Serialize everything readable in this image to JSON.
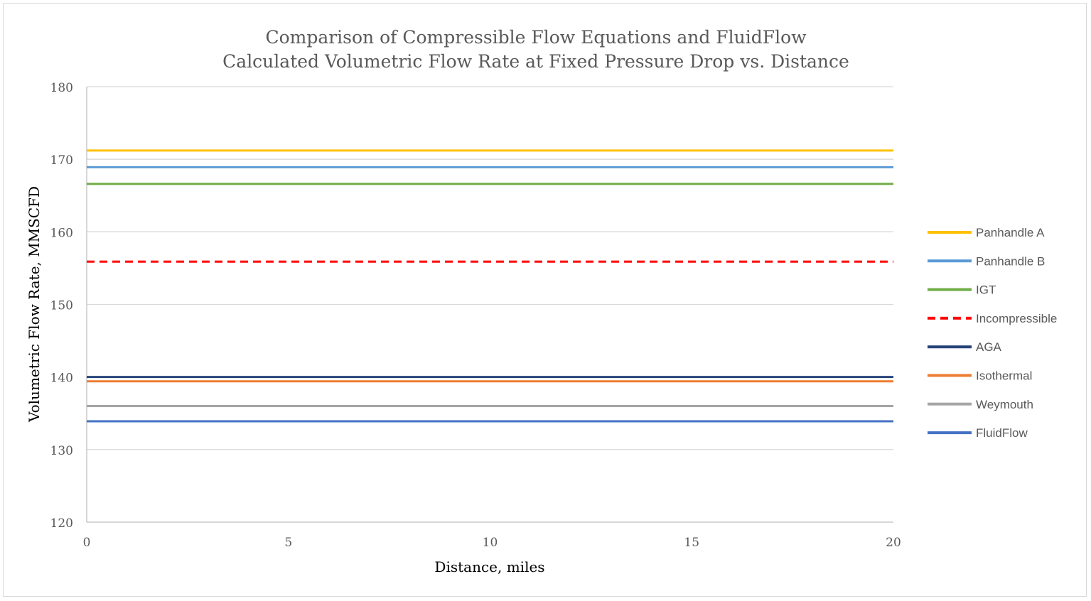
{
  "chart_data": {
    "type": "line",
    "title": "Comparison of Compressible Flow Equations and FluidFlow",
    "subtitle": "Calculated Volumetric Flow Rate at Fixed Pressure Drop vs. Distance",
    "xlabel": "Distance, miles",
    "ylabel": "Volumetric Flow Rate, MMSCFD",
    "xlim": [
      0,
      20
    ],
    "ylim": [
      120,
      180
    ],
    "xticks": [
      0,
      5,
      10,
      15,
      20
    ],
    "yticks": [
      120,
      130,
      140,
      150,
      160,
      170,
      180
    ],
    "grid": "horizontal",
    "legend_position": "right",
    "x": [
      0,
      20
    ],
    "series": [
      {
        "name": "Panhandle A",
        "values": [
          171.2,
          171.2
        ],
        "color": "#ffc000",
        "dash": "solid"
      },
      {
        "name": "Panhandle B",
        "values": [
          168.9,
          168.9
        ],
        "color": "#5b9bd5",
        "dash": "solid"
      },
      {
        "name": "IGT",
        "values": [
          166.6,
          166.6
        ],
        "color": "#70ad47",
        "dash": "solid"
      },
      {
        "name": "Incompressible",
        "values": [
          155.9,
          155.9
        ],
        "color": "#ff0000",
        "dash": "dashed"
      },
      {
        "name": "AGA",
        "values": [
          140.0,
          140.0
        ],
        "color": "#264478",
        "dash": "solid"
      },
      {
        "name": "Isothermal",
        "values": [
          139.4,
          139.4
        ],
        "color": "#ed7d31",
        "dash": "solid"
      },
      {
        "name": "Weymouth",
        "values": [
          136.0,
          136.0
        ],
        "color": "#a5a5a5",
        "dash": "solid"
      },
      {
        "name": "FluidFlow",
        "values": [
          133.9,
          133.9
        ],
        "color": "#4472c4",
        "dash": "solid"
      }
    ]
  }
}
